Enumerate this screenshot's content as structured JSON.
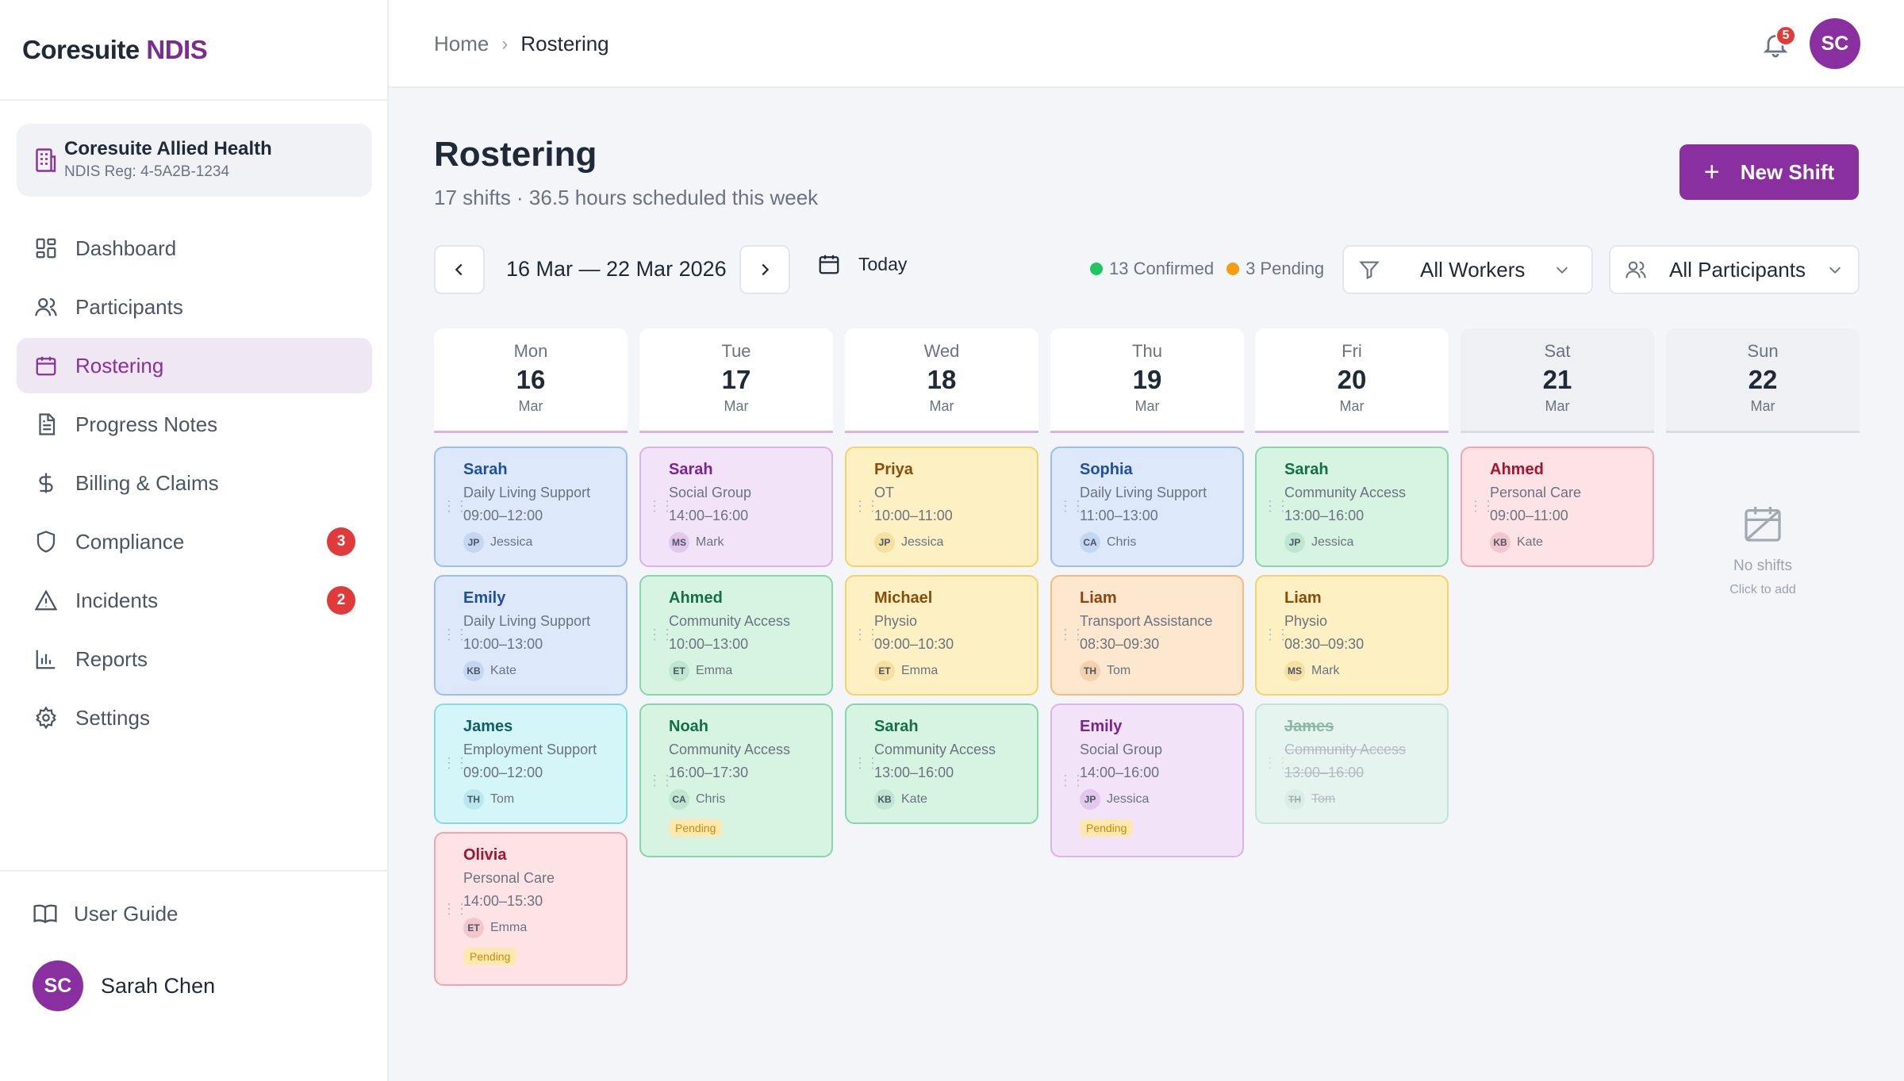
{
  "app": {
    "brand_main": "Coresuite",
    "brand_accent": "NDIS"
  },
  "org": {
    "name": "Coresuite Allied Health",
    "reg": "NDIS Reg: 4-5A2B-1234"
  },
  "nav": [
    {
      "label": "Dashboard",
      "icon": "grid-icon"
    },
    {
      "label": "Participants",
      "icon": "users-icon"
    },
    {
      "label": "Rostering",
      "icon": "calendar-icon",
      "active": true
    },
    {
      "label": "Progress Notes",
      "icon": "document-icon"
    },
    {
      "label": "Billing & Claims",
      "icon": "dollar-icon"
    },
    {
      "label": "Compliance",
      "icon": "shield-icon",
      "badge": "3"
    },
    {
      "label": "Incidents",
      "icon": "warning-icon",
      "badge": "2"
    },
    {
      "label": "Reports",
      "icon": "bar-chart-icon"
    },
    {
      "label": "Settings",
      "icon": "gear-icon"
    }
  ],
  "footer": {
    "guide": "User Guide",
    "user_initials": "SC",
    "user_name": "Sarah Chen"
  },
  "topbar": {
    "crumb_home": "Home",
    "crumb_current": "Rostering",
    "notifications": "5",
    "avatar": "SC"
  },
  "header": {
    "title": "Rostering",
    "subtitle": "17 shifts · 36.5 hours scheduled this week",
    "new_shift": "New Shift"
  },
  "controls": {
    "week_range": "16 Mar — 22 Mar 2026",
    "today": "Today",
    "confirmed": "13 Confirmed",
    "pending": "3 Pending",
    "workers_filter": "All Workers",
    "participants_filter": "All Participants"
  },
  "colors": {
    "accent": "#8a2f9f",
    "confirmed": "#22c55e",
    "pending": "#f59e0b",
    "badge": "#e03a3a"
  },
  "days": [
    {
      "name": "Mon",
      "num": "16",
      "mon": "Mar",
      "weekend": false
    },
    {
      "name": "Tue",
      "num": "17",
      "mon": "Mar",
      "weekend": false
    },
    {
      "name": "Wed",
      "num": "18",
      "mon": "Mar",
      "weekend": false
    },
    {
      "name": "Thu",
      "num": "19",
      "mon": "Mar",
      "weekend": false
    },
    {
      "name": "Fri",
      "num": "20",
      "mon": "Mar",
      "weekend": false
    },
    {
      "name": "Sat",
      "num": "21",
      "mon": "Mar",
      "weekend": true
    },
    {
      "name": "Sun",
      "num": "22",
      "mon": "Mar",
      "weekend": true
    }
  ],
  "shifts": [
    {
      "name": "Sarah",
      "type": "Daily Living Support",
      "time": "09:00–12:00",
      "ini": "JP",
      "worker": "Jessica"
    },
    {
      "name": "Emily",
      "type": "Daily Living Support",
      "time": "10:00–13:00",
      "ini": "KB",
      "worker": "Kate"
    },
    {
      "name": "James",
      "type": "Employment Support",
      "time": "09:00–12:00",
      "ini": "TH",
      "worker": "Tom"
    },
    {
      "name": "Olivia",
      "type": "Personal Care",
      "time": "14:00–15:30",
      "ini": "ET",
      "worker": "Emma",
      "status": "Pending"
    },
    {
      "name": "Sarah",
      "type": "Social Group",
      "time": "14:00–16:00",
      "ini": "MS",
      "worker": "Mark"
    },
    {
      "name": "Ahmed",
      "type": "Community Access",
      "time": "10:00–13:00",
      "ini": "ET",
      "worker": "Emma"
    },
    {
      "name": "Noah",
      "type": "Community Access",
      "time": "16:00–17:30",
      "ini": "CA",
      "worker": "Chris",
      "status": "Pending"
    },
    {
      "name": "Priya",
      "type": "OT",
      "time": "10:00–11:00",
      "ini": "JP",
      "worker": "Jessica"
    },
    {
      "name": "Michael",
      "type": "Physio",
      "time": "09:00–10:30",
      "ini": "ET",
      "worker": "Emma"
    },
    {
      "name": "Sarah",
      "type": "Community Access",
      "time": "13:00–16:00",
      "ini": "KB",
      "worker": "Kate"
    },
    {
      "name": "Sophia",
      "type": "Daily Living Support",
      "time": "11:00–13:00",
      "ini": "CA",
      "worker": "Chris"
    },
    {
      "name": "Liam",
      "type": "Transport Assistance",
      "time": "08:30–09:30",
      "ini": "TH",
      "worker": "Tom"
    },
    {
      "name": "Emily",
      "type": "Social Group",
      "time": "14:00–16:00",
      "ini": "JP",
      "worker": "Jessica",
      "status": "Pending"
    },
    {
      "name": "Sarah",
      "type": "Community Access",
      "time": "13:00–16:00",
      "ini": "JP",
      "worker": "Jessica"
    },
    {
      "name": "Liam",
      "type": "Physio",
      "time": "08:30–09:30",
      "ini": "MS",
      "worker": "Mark"
    },
    {
      "name": "James",
      "type": "Community Access",
      "time": "13:00–16:00",
      "ini": "TH",
      "worker": "Tom",
      "status": "Cancelled"
    },
    {
      "name": "Ahmed",
      "type": "Personal Care",
      "time": "09:00–11:00",
      "ini": "KB",
      "worker": "Kate"
    }
  ],
  "empty_day": {
    "title": "No shifts",
    "hint": "Click to add"
  }
}
